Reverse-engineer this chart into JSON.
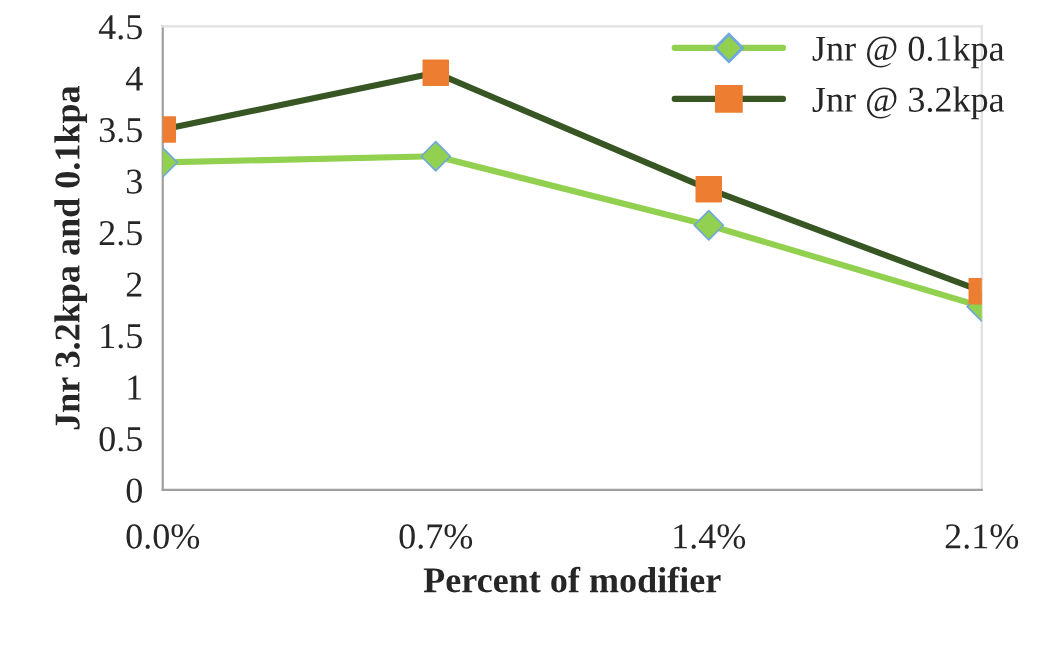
{
  "chart_data": {
    "type": "line",
    "xlabel": "Percent of modifier",
    "ylabel": "Jnr 3.2kpa and 0.1kpa",
    "categories": [
      "0.0%",
      "0.7%",
      "1.4%",
      "2.1%"
    ],
    "series": [
      {
        "name": "Jnr @ 0.1kpa",
        "color": "#92d050",
        "marker": "diamond",
        "colors": [
          "#92d050",
          "#92d050",
          "#92d050",
          "#92d050"
        ],
        "values": [
          3.18,
          3.24,
          2.57,
          1.78
        ]
      },
      {
        "name": "Jnr @ 3.2kpa",
        "color": "#375623",
        "marker": "square",
        "colors": [
          "#ed7d31",
          "#ed7d31",
          "#ed7d31",
          "#ed7d31"
        ],
        "values": [
          3.5,
          4.05,
          2.92,
          1.93
        ]
      }
    ],
    "ylim": [
      0,
      4.5
    ],
    "yticks": [
      0,
      0.5,
      1,
      1.5,
      2,
      2.5,
      3,
      3.5,
      4,
      4.5
    ],
    "grid": false,
    "legend": "top right"
  }
}
